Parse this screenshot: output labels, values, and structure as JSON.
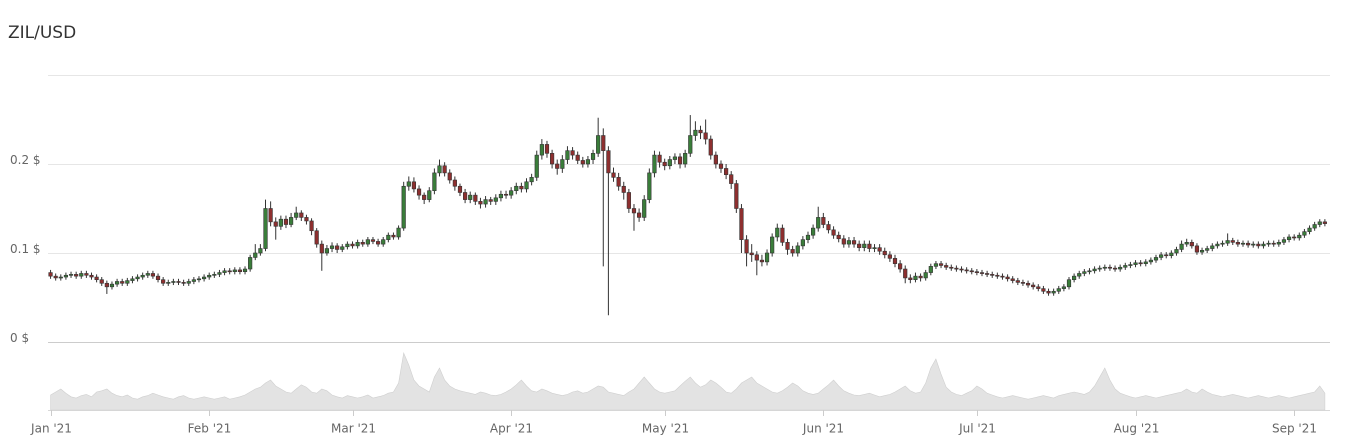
{
  "chart_data": {
    "type": "candlestick",
    "title": "ZIL/USD",
    "x": [
      0,
      1,
      2,
      3,
      4,
      5,
      6,
      7,
      8,
      9,
      10,
      11,
      12,
      13,
      14,
      15,
      16,
      17,
      18,
      19,
      20,
      21,
      22,
      23,
      24,
      25,
      26,
      27,
      28,
      29,
      30,
      31,
      32,
      33,
      34,
      35,
      36,
      37,
      38,
      39,
      40,
      41,
      42,
      43,
      44,
      45,
      46,
      47,
      48,
      49,
      50,
      51,
      52,
      53,
      54,
      55,
      56,
      57,
      58,
      59,
      60,
      61,
      62,
      63,
      64,
      65,
      66,
      67,
      68,
      69,
      70,
      71,
      72,
      73,
      74,
      75,
      76,
      77,
      78,
      79,
      80,
      81,
      82,
      83,
      84,
      85,
      86,
      87,
      88,
      89,
      90,
      91,
      92,
      93,
      94,
      95,
      96,
      97,
      98,
      99,
      100,
      101,
      102,
      103,
      104,
      105,
      106,
      107,
      108,
      109,
      110,
      111,
      112,
      113,
      114,
      115,
      116,
      117,
      118,
      119,
      120,
      121,
      122,
      123,
      124,
      125,
      126,
      127,
      128,
      129,
      130,
      131,
      132,
      133,
      134,
      135,
      136,
      137,
      138,
      139,
      140,
      141,
      142,
      143,
      144,
      145,
      146,
      147,
      148,
      149,
      150,
      151,
      152,
      153,
      154,
      155,
      156,
      157,
      158,
      159,
      160,
      161,
      162,
      163,
      164,
      165,
      166,
      167,
      168,
      169,
      170,
      171,
      172,
      173,
      174,
      175,
      176,
      177,
      178,
      179,
      180,
      181,
      182,
      183,
      184,
      185,
      186,
      187,
      188,
      189,
      190,
      191,
      192,
      193,
      194,
      195,
      196,
      197,
      198,
      199,
      200,
      201,
      202,
      203,
      204,
      205,
      206,
      207,
      208,
      209,
      210,
      211,
      212,
      213,
      214,
      215,
      216,
      217,
      218,
      219,
      220,
      221,
      222,
      223,
      224,
      225,
      226,
      227,
      228,
      229,
      230,
      231,
      232,
      233,
      234,
      235,
      236,
      237,
      238,
      239,
      240,
      241,
      242,
      243,
      244,
      245,
      246,
      247,
      248,
      249
    ],
    "open": [
      0.078,
      0.074,
      0.072,
      0.073,
      0.075,
      0.076,
      0.074,
      0.077,
      0.075,
      0.073,
      0.07,
      0.066,
      0.062,
      0.065,
      0.068,
      0.066,
      0.069,
      0.071,
      0.073,
      0.075,
      0.077,
      0.074,
      0.07,
      0.066,
      0.067,
      0.068,
      0.067,
      0.066,
      0.068,
      0.07,
      0.071,
      0.073,
      0.075,
      0.076,
      0.078,
      0.08,
      0.079,
      0.081,
      0.079,
      0.082,
      0.095,
      0.1,
      0.105,
      0.15,
      0.135,
      0.13,
      0.138,
      0.132,
      0.14,
      0.145,
      0.14,
      0.136,
      0.125,
      0.11,
      0.1,
      0.105,
      0.108,
      0.104,
      0.107,
      0.11,
      0.108,
      0.112,
      0.11,
      0.115,
      0.113,
      0.11,
      0.115,
      0.12,
      0.118,
      0.128,
      0.175,
      0.18,
      0.172,
      0.165,
      0.16,
      0.17,
      0.19,
      0.198,
      0.19,
      0.182,
      0.175,
      0.168,
      0.16,
      0.165,
      0.158,
      0.155,
      0.16,
      0.158,
      0.162,
      0.166,
      0.165,
      0.17,
      0.175,
      0.172,
      0.18,
      0.185,
      0.21,
      0.222,
      0.212,
      0.2,
      0.195,
      0.205,
      0.215,
      0.21,
      0.204,
      0.2,
      0.205,
      0.212,
      0.232,
      0.215,
      0.19,
      0.185,
      0.175,
      0.168,
      0.15,
      0.145,
      0.14,
      0.16,
      0.19,
      0.21,
      0.202,
      0.198,
      0.205,
      0.208,
      0.2,
      0.212,
      0.232,
      0.238,
      0.235,
      0.228,
      0.21,
      0.2,
      0.195,
      0.188,
      0.178,
      0.15,
      0.115,
      0.1,
      0.098,
      0.092,
      0.09,
      0.1,
      0.118,
      0.128,
      0.112,
      0.104,
      0.1,
      0.108,
      0.115,
      0.12,
      0.128,
      0.14,
      0.132,
      0.126,
      0.12,
      0.116,
      0.11,
      0.114,
      0.11,
      0.106,
      0.11,
      0.105,
      0.106,
      0.102,
      0.098,
      0.094,
      0.088,
      0.082,
      0.072,
      0.07,
      0.074,
      0.072,
      0.078,
      0.085,
      0.088,
      0.086,
      0.084,
      0.083,
      0.082,
      0.081,
      0.08,
      0.079,
      0.078,
      0.077,
      0.076,
      0.075,
      0.074,
      0.073,
      0.071,
      0.069,
      0.067,
      0.066,
      0.064,
      0.062,
      0.06,
      0.057,
      0.055,
      0.057,
      0.06,
      0.062,
      0.07,
      0.074,
      0.077,
      0.079,
      0.08,
      0.082,
      0.083,
      0.084,
      0.083,
      0.082,
      0.084,
      0.086,
      0.087,
      0.089,
      0.088,
      0.09,
      0.092,
      0.095,
      0.098,
      0.097,
      0.1,
      0.104,
      0.11,
      0.112,
      0.108,
      0.101,
      0.103,
      0.105,
      0.108,
      0.11,
      0.111,
      0.114,
      0.112,
      0.11,
      0.111,
      0.109,
      0.11,
      0.108,
      0.11,
      0.111,
      0.11,
      0.112,
      0.115,
      0.118,
      0.117,
      0.12,
      0.124,
      0.128,
      0.132,
      0.135
    ],
    "high": [
      0.081,
      0.077,
      0.076,
      0.078,
      0.079,
      0.079,
      0.08,
      0.08,
      0.078,
      0.076,
      0.073,
      0.069,
      0.068,
      0.071,
      0.071,
      0.072,
      0.074,
      0.076,
      0.078,
      0.08,
      0.08,
      0.077,
      0.073,
      0.07,
      0.071,
      0.071,
      0.07,
      0.071,
      0.073,
      0.074,
      0.076,
      0.078,
      0.079,
      0.081,
      0.083,
      0.083,
      0.084,
      0.084,
      0.085,
      0.098,
      0.11,
      0.11,
      0.16,
      0.158,
      0.14,
      0.142,
      0.142,
      0.145,
      0.152,
      0.148,
      0.143,
      0.139,
      0.128,
      0.114,
      0.109,
      0.112,
      0.111,
      0.11,
      0.113,
      0.113,
      0.115,
      0.115,
      0.118,
      0.118,
      0.116,
      0.118,
      0.123,
      0.123,
      0.131,
      0.18,
      0.186,
      0.185,
      0.176,
      0.168,
      0.174,
      0.195,
      0.205,
      0.202,
      0.194,
      0.186,
      0.178,
      0.172,
      0.169,
      0.168,
      0.162,
      0.164,
      0.163,
      0.166,
      0.17,
      0.17,
      0.174,
      0.179,
      0.179,
      0.184,
      0.189,
      0.215,
      0.228,
      0.226,
      0.216,
      0.205,
      0.21,
      0.22,
      0.219,
      0.214,
      0.208,
      0.209,
      0.216,
      0.252,
      0.24,
      0.22,
      0.196,
      0.19,
      0.18,
      0.172,
      0.155,
      0.15,
      0.165,
      0.195,
      0.215,
      0.214,
      0.206,
      0.209,
      0.212,
      0.212,
      0.216,
      0.255,
      0.248,
      0.243,
      0.25,
      0.232,
      0.214,
      0.204,
      0.2,
      0.192,
      0.182,
      0.155,
      0.12,
      0.11,
      0.102,
      0.098,
      0.104,
      0.122,
      0.133,
      0.132,
      0.116,
      0.108,
      0.112,
      0.119,
      0.124,
      0.132,
      0.152,
      0.145,
      0.136,
      0.13,
      0.124,
      0.12,
      0.118,
      0.118,
      0.114,
      0.114,
      0.114,
      0.11,
      0.11,
      0.106,
      0.102,
      0.098,
      0.092,
      0.086,
      0.076,
      0.078,
      0.077,
      0.081,
      0.088,
      0.091,
      0.091,
      0.089,
      0.087,
      0.086,
      0.085,
      0.084,
      0.083,
      0.082,
      0.081,
      0.08,
      0.079,
      0.078,
      0.077,
      0.076,
      0.074,
      0.072,
      0.07,
      0.069,
      0.067,
      0.065,
      0.063,
      0.06,
      0.06,
      0.063,
      0.065,
      0.073,
      0.077,
      0.08,
      0.082,
      0.083,
      0.085,
      0.086,
      0.087,
      0.087,
      0.086,
      0.087,
      0.089,
      0.09,
      0.092,
      0.092,
      0.093,
      0.095,
      0.098,
      0.101,
      0.101,
      0.103,
      0.107,
      0.114,
      0.116,
      0.115,
      0.111,
      0.106,
      0.108,
      0.111,
      0.113,
      0.114,
      0.122,
      0.117,
      0.115,
      0.114,
      0.114,
      0.113,
      0.113,
      0.113,
      0.114,
      0.114,
      0.115,
      0.118,
      0.121,
      0.121,
      0.123,
      0.127,
      0.131,
      0.135,
      0.138,
      0.138
    ],
    "low": [
      0.071,
      0.069,
      0.069,
      0.07,
      0.072,
      0.071,
      0.071,
      0.072,
      0.07,
      0.067,
      0.063,
      0.054,
      0.059,
      0.062,
      0.063,
      0.063,
      0.066,
      0.068,
      0.07,
      0.072,
      0.071,
      0.067,
      0.063,
      0.063,
      0.064,
      0.064,
      0.063,
      0.063,
      0.065,
      0.067,
      0.068,
      0.07,
      0.072,
      0.073,
      0.075,
      0.076,
      0.076,
      0.076,
      0.076,
      0.079,
      0.092,
      0.097,
      0.102,
      0.13,
      0.115,
      0.126,
      0.128,
      0.129,
      0.137,
      0.136,
      0.132,
      0.12,
      0.106,
      0.08,
      0.097,
      0.101,
      0.1,
      0.101,
      0.104,
      0.105,
      0.105,
      0.107,
      0.107,
      0.11,
      0.107,
      0.107,
      0.112,
      0.115,
      0.115,
      0.125,
      0.17,
      0.168,
      0.16,
      0.155,
      0.157,
      0.166,
      0.186,
      0.186,
      0.178,
      0.17,
      0.164,
      0.156,
      0.156,
      0.154,
      0.15,
      0.151,
      0.154,
      0.154,
      0.158,
      0.161,
      0.161,
      0.166,
      0.168,
      0.168,
      0.176,
      0.181,
      0.205,
      0.207,
      0.195,
      0.188,
      0.19,
      0.2,
      0.205,
      0.2,
      0.196,
      0.196,
      0.2,
      0.208,
      0.085,
      0.03,
      0.18,
      0.17,
      0.16,
      0.145,
      0.125,
      0.135,
      0.136,
      0.156,
      0.185,
      0.196,
      0.193,
      0.194,
      0.2,
      0.195,
      0.196,
      0.208,
      0.226,
      0.228,
      0.222,
      0.205,
      0.195,
      0.19,
      0.183,
      0.172,
      0.145,
      0.1,
      0.085,
      0.09,
      0.075,
      0.085,
      0.086,
      0.096,
      0.113,
      0.108,
      0.098,
      0.096,
      0.096,
      0.104,
      0.111,
      0.116,
      0.124,
      0.128,
      0.122,
      0.116,
      0.112,
      0.106,
      0.106,
      0.106,
      0.102,
      0.102,
      0.101,
      0.101,
      0.098,
      0.094,
      0.09,
      0.084,
      0.078,
      0.066,
      0.066,
      0.067,
      0.068,
      0.069,
      0.075,
      0.082,
      0.083,
      0.081,
      0.08,
      0.079,
      0.078,
      0.077,
      0.076,
      0.075,
      0.074,
      0.073,
      0.072,
      0.071,
      0.07,
      0.068,
      0.066,
      0.064,
      0.063,
      0.061,
      0.059,
      0.057,
      0.054,
      0.052,
      0.052,
      0.054,
      0.057,
      0.059,
      0.067,
      0.071,
      0.074,
      0.076,
      0.077,
      0.079,
      0.08,
      0.08,
      0.079,
      0.079,
      0.081,
      0.083,
      0.084,
      0.085,
      0.085,
      0.087,
      0.089,
      0.092,
      0.094,
      0.094,
      0.097,
      0.101,
      0.107,
      0.105,
      0.098,
      0.098,
      0.1,
      0.102,
      0.105,
      0.107,
      0.108,
      0.109,
      0.107,
      0.107,
      0.106,
      0.106,
      0.105,
      0.105,
      0.107,
      0.107,
      0.107,
      0.109,
      0.112,
      0.114,
      0.114,
      0.117,
      0.121,
      0.125,
      0.129,
      0.13
    ],
    "close": [
      0.074,
      0.072,
      0.073,
      0.075,
      0.076,
      0.074,
      0.077,
      0.075,
      0.073,
      0.07,
      0.066,
      0.062,
      0.065,
      0.068,
      0.066,
      0.069,
      0.071,
      0.073,
      0.075,
      0.077,
      0.074,
      0.07,
      0.066,
      0.067,
      0.068,
      0.067,
      0.066,
      0.068,
      0.07,
      0.071,
      0.073,
      0.075,
      0.076,
      0.078,
      0.08,
      0.079,
      0.081,
      0.079,
      0.082,
      0.095,
      0.1,
      0.105,
      0.15,
      0.135,
      0.13,
      0.138,
      0.132,
      0.14,
      0.145,
      0.14,
      0.136,
      0.125,
      0.11,
      0.1,
      0.105,
      0.108,
      0.104,
      0.107,
      0.11,
      0.108,
      0.112,
      0.11,
      0.115,
      0.113,
      0.11,
      0.115,
      0.12,
      0.118,
      0.128,
      0.175,
      0.18,
      0.172,
      0.165,
      0.16,
      0.17,
      0.19,
      0.198,
      0.19,
      0.182,
      0.175,
      0.168,
      0.16,
      0.165,
      0.158,
      0.155,
      0.16,
      0.158,
      0.162,
      0.166,
      0.165,
      0.17,
      0.175,
      0.172,
      0.18,
      0.185,
      0.21,
      0.222,
      0.212,
      0.2,
      0.195,
      0.205,
      0.215,
      0.21,
      0.204,
      0.2,
      0.205,
      0.212,
      0.232,
      0.215,
      0.19,
      0.185,
      0.175,
      0.168,
      0.15,
      0.145,
      0.14,
      0.16,
      0.19,
      0.21,
      0.202,
      0.198,
      0.205,
      0.208,
      0.2,
      0.212,
      0.232,
      0.238,
      0.235,
      0.228,
      0.21,
      0.2,
      0.195,
      0.188,
      0.178,
      0.15,
      0.115,
      0.1,
      0.098,
      0.092,
      0.09,
      0.1,
      0.118,
      0.128,
      0.112,
      0.104,
      0.1,
      0.108,
      0.115,
      0.12,
      0.128,
      0.14,
      0.132,
      0.126,
      0.12,
      0.116,
      0.11,
      0.114,
      0.11,
      0.106,
      0.11,
      0.105,
      0.106,
      0.102,
      0.098,
      0.094,
      0.088,
      0.082,
      0.072,
      0.07,
      0.074,
      0.072,
      0.078,
      0.085,
      0.088,
      0.086,
      0.084,
      0.083,
      0.082,
      0.081,
      0.08,
      0.079,
      0.078,
      0.077,
      0.076,
      0.075,
      0.074,
      0.073,
      0.071,
      0.069,
      0.067,
      0.066,
      0.064,
      0.062,
      0.06,
      0.057,
      0.055,
      0.057,
      0.06,
      0.062,
      0.07,
      0.074,
      0.077,
      0.079,
      0.08,
      0.082,
      0.083,
      0.084,
      0.083,
      0.082,
      0.084,
      0.086,
      0.087,
      0.089,
      0.088,
      0.09,
      0.092,
      0.095,
      0.098,
      0.097,
      0.1,
      0.104,
      0.11,
      0.112,
      0.108,
      0.101,
      0.103,
      0.105,
      0.108,
      0.11,
      0.111,
      0.114,
      0.112,
      0.11,
      0.111,
      0.109,
      0.11,
      0.108,
      0.11,
      0.111,
      0.11,
      0.112,
      0.115,
      0.118,
      0.117,
      0.12,
      0.124,
      0.128,
      0.132,
      0.135,
      0.133
    ],
    "volume": [
      25,
      30,
      35,
      28,
      22,
      20,
      24,
      26,
      22,
      30,
      32,
      35,
      28,
      24,
      22,
      25,
      20,
      18,
      22,
      24,
      28,
      25,
      22,
      20,
      18,
      22,
      24,
      20,
      18,
      20,
      22,
      20,
      18,
      20,
      22,
      18,
      20,
      22,
      25,
      30,
      35,
      38,
      45,
      50,
      40,
      35,
      30,
      28,
      35,
      42,
      38,
      30,
      28,
      35,
      32,
      25,
      22,
      20,
      24,
      22,
      20,
      22,
      25,
      20,
      22,
      24,
      28,
      30,
      45,
      95,
      75,
      50,
      40,
      35,
      30,
      55,
      70,
      50,
      40,
      35,
      32,
      30,
      28,
      26,
      30,
      28,
      25,
      24,
      26,
      30,
      35,
      42,
      50,
      40,
      32,
      30,
      35,
      32,
      28,
      26,
      24,
      26,
      30,
      32,
      28,
      30,
      35,
      40,
      38,
      30,
      28,
      26,
      24,
      30,
      35,
      45,
      55,
      45,
      35,
      30,
      28,
      30,
      32,
      40,
      48,
      55,
      45,
      38,
      42,
      50,
      45,
      38,
      30,
      28,
      35,
      45,
      50,
      55,
      45,
      40,
      35,
      30,
      28,
      32,
      38,
      45,
      40,
      32,
      28,
      26,
      28,
      35,
      42,
      50,
      40,
      32,
      28,
      25,
      24,
      26,
      28,
      25,
      22,
      24,
      26,
      30,
      35,
      40,
      32,
      28,
      30,
      45,
      70,
      85,
      60,
      38,
      30,
      26,
      24,
      28,
      32,
      40,
      35,
      28,
      25,
      22,
      20,
      22,
      24,
      22,
      20,
      18,
      20,
      22,
      24,
      22,
      20,
      24,
      26,
      28,
      30,
      28,
      26,
      30,
      40,
      55,
      70,
      50,
      35,
      28,
      25,
      22,
      20,
      22,
      24,
      22,
      20,
      22,
      24,
      26,
      28,
      30,
      35,
      30,
      28,
      35,
      30,
      26,
      24,
      22,
      24,
      26,
      24,
      22,
      20,
      22,
      24,
      22,
      20,
      22,
      24,
      22,
      20,
      22,
      24,
      26,
      28,
      30,
      40,
      28
    ],
    "up_color": "#3a7d3a",
    "down_color": "#8e2f2f",
    "volume_color": "#e3e3e3",
    "xlim": [
      -0.5,
      250
    ],
    "xticks": [
      {
        "value": 0,
        "label": "Jan '21"
      },
      {
        "value": 31,
        "label": "Feb '21"
      },
      {
        "value": 59,
        "label": "Mar '21"
      },
      {
        "value": 90,
        "label": "Apr '21"
      },
      {
        "value": 120,
        "label": "May '21"
      },
      {
        "value": 151,
        "label": "Jun '21"
      },
      {
        "value": 181,
        "label": "Jul '21"
      },
      {
        "value": 212,
        "label": "Aug '21"
      },
      {
        "value": 243,
        "label": "Sep '21"
      }
    ],
    "ylim": [
      0,
      0.3
    ],
    "yticks": [
      {
        "value": 0,
        "label": "0 $"
      },
      {
        "value": 0.1,
        "label": "0.1 $"
      },
      {
        "value": 0.2,
        "label": "0.2 $"
      }
    ],
    "grid": true
  }
}
